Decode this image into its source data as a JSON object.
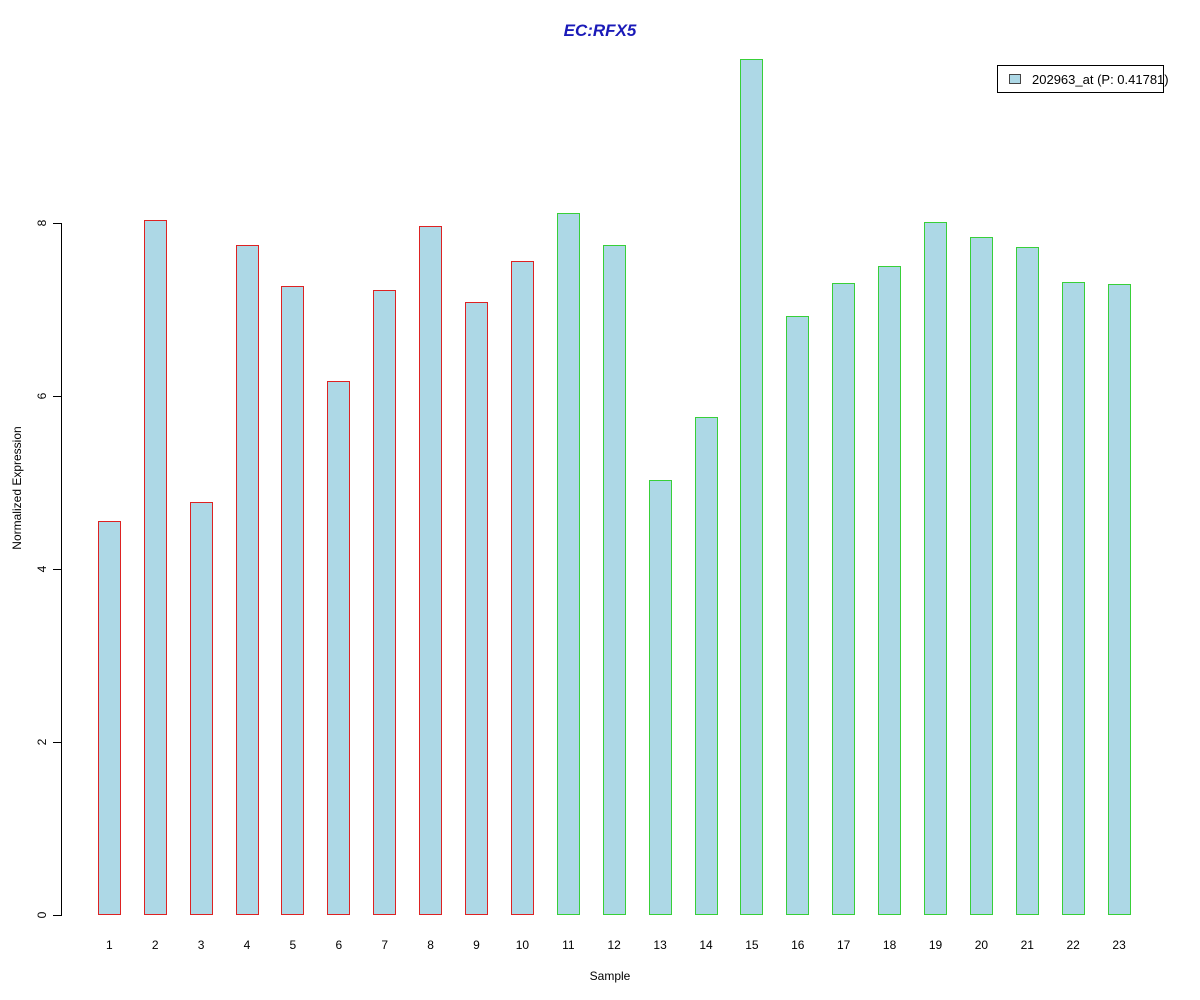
{
  "chart_data": {
    "type": "bar",
    "title": "EC:RFX5",
    "title_color": "#1a1ab8",
    "xlabel": "Sample",
    "ylabel": "Normalized Expression",
    "categories": [
      "1",
      "2",
      "3",
      "4",
      "5",
      "6",
      "7",
      "8",
      "9",
      "10",
      "11",
      "12",
      "13",
      "14",
      "15",
      "16",
      "17",
      "18",
      "19",
      "20",
      "21",
      "22",
      "23"
    ],
    "values": [
      4.55,
      8.03,
      4.77,
      7.75,
      7.27,
      6.17,
      7.22,
      7.96,
      7.09,
      7.56,
      8.11,
      7.74,
      5.03,
      5.76,
      9.9,
      6.92,
      7.31,
      7.5,
      8.01,
      7.84,
      7.72,
      7.32,
      7.29
    ],
    "yticks": [
      0,
      2,
      4,
      6,
      8
    ],
    "ylim": [
      0,
      10
    ],
    "grid": false,
    "bar_fill": "#add8e6",
    "groups": [
      {
        "name": "group-red",
        "from": 1,
        "to": 10,
        "border_color": "#dd2222"
      },
      {
        "name": "group-green",
        "from": 11,
        "to": 23,
        "border_color": "#38cf38"
      }
    ],
    "legend": {
      "position": "top-right",
      "probe": "202963_at",
      "p_value": "0.41781",
      "label": "202963_at (P: 0.41781)",
      "swatch_fill": "#add8e6"
    }
  }
}
